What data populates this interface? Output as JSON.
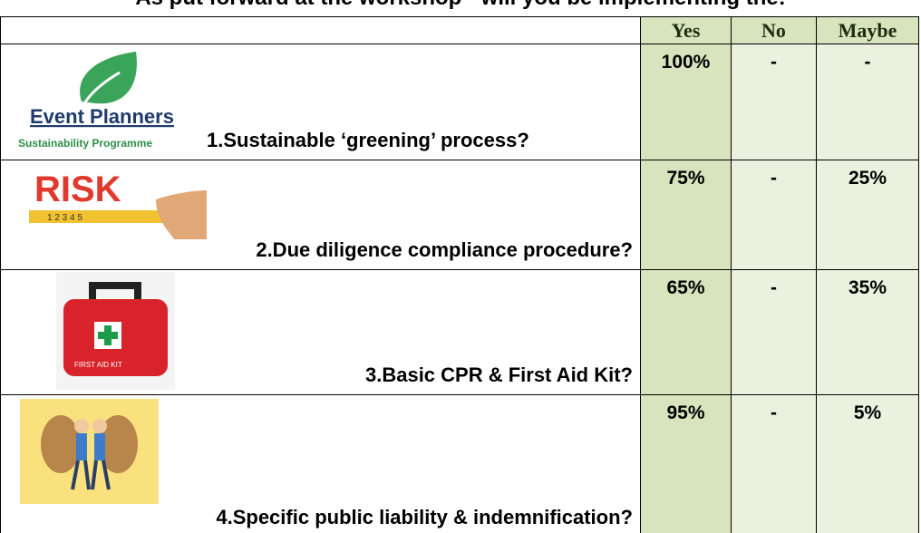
{
  "title": "As put forward at the workshop - will you be implementing the:",
  "table": {
    "header": [
      "Yes",
      "No",
      "Maybe"
    ],
    "rows": [
      {
        "image_text": [
          "Event Planners",
          "Sustainability Programme"
        ],
        "question": "1.Sustainable ‘greening’ process?",
        "cells": [
          "100%",
          "-",
          "-"
        ]
      },
      {
        "image_text": [
          "RISK"
        ],
        "question": "2.Due diligence compliance procedure?",
        "cells": [
          "75%",
          "-",
          "25%"
        ]
      },
      {
        "image_text": [
          "FIRST AID KIT"
        ],
        "question": "3.Basic CPR & First Aid Kit?",
        "cells": [
          "65%",
          "-",
          "35%"
        ]
      },
      {
        "question": "4.Specific public liability & indemnification?",
        "cells": [
          "95%",
          "-",
          "5%"
        ]
      }
    ]
  }
}
